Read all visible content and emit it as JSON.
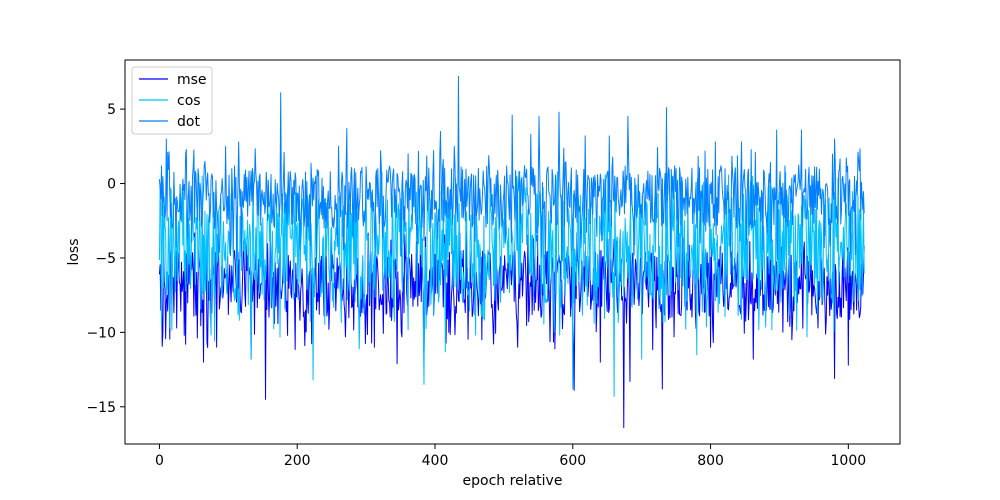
{
  "chart_data": {
    "type": "line",
    "title": "",
    "xlabel": "epoch relative",
    "ylabel": "loss",
    "xlim": [
      -50,
      1075
    ],
    "ylim": [
      -17.5,
      8.3
    ],
    "xticks": [
      0,
      200,
      400,
      600,
      800,
      1000
    ],
    "yticks": [
      5,
      0,
      -5,
      -10,
      -15
    ],
    "ytick_labels": [
      "5",
      "0",
      "−5",
      "−10",
      "−15"
    ],
    "grid": false,
    "legend": "top-left",
    "n_points": 1024,
    "series": [
      {
        "name": "mse",
        "color": "#0000ff",
        "typical_range": [
          -9,
          -4.5
        ],
        "spikes": [
          [
            0,
            -6.1
          ],
          [
            5,
            -10.0
          ],
          [
            38,
            -10.8
          ],
          [
            64,
            -12.0
          ],
          [
            133,
            -11.8
          ],
          [
            154,
            -14.5
          ],
          [
            186,
            -10.2
          ],
          [
            270,
            -10.3
          ],
          [
            312,
            -11.0
          ],
          [
            345,
            -12.1
          ],
          [
            384,
            -11.6
          ],
          [
            420,
            -10.0
          ],
          [
            468,
            -10.5
          ],
          [
            520,
            -11.0
          ],
          [
            574,
            -11.1
          ],
          [
            602,
            -13.9
          ],
          [
            640,
            -12.0
          ],
          [
            674,
            -16.4
          ],
          [
            683,
            -13.3
          ],
          [
            730,
            -13.8
          ],
          [
            800,
            -11.0
          ],
          [
            862,
            -11.8
          ],
          [
            918,
            -10.5
          ],
          [
            980,
            -13.1
          ],
          [
            1000,
            -12.2
          ],
          [
            1022,
            -6.1
          ]
        ]
      },
      {
        "name": "cos",
        "color": "#00bfff",
        "typical_range": [
          -8,
          -0.5
        ],
        "spikes": [
          [
            3,
            -9.5
          ],
          [
            80,
            -10.6
          ],
          [
            133,
            -11.8
          ],
          [
            175,
            -10.3
          ],
          [
            223,
            -13.2
          ],
          [
            290,
            -11.1
          ],
          [
            384,
            -13.5
          ],
          [
            415,
            -11.3
          ],
          [
            600,
            -13.8
          ],
          [
            660,
            -14.3
          ],
          [
            700,
            -11.8
          ],
          [
            780,
            -11.5
          ],
          [
            940,
            -10.3
          ]
        ]
      },
      {
        "name": "dot",
        "color": "#0080ff",
        "typical_range": [
          -3,
          1.2
        ],
        "spikes": [
          [
            10,
            3.0
          ],
          [
            38,
            2.0
          ],
          [
            96,
            2.5
          ],
          [
            115,
            2.8
          ],
          [
            176,
            6.1
          ],
          [
            260,
            2.5
          ],
          [
            272,
            3.7
          ],
          [
            321,
            2.2
          ],
          [
            361,
            2.0
          ],
          [
            408,
            3.5
          ],
          [
            434,
            7.2
          ],
          [
            512,
            4.6
          ],
          [
            539,
            3.3
          ],
          [
            551,
            4.5
          ],
          [
            580,
            4.8
          ],
          [
            618,
            3.2
          ],
          [
            653,
            3.2
          ],
          [
            680,
            4.5
          ],
          [
            736,
            5.1
          ],
          [
            807,
            2.8
          ],
          [
            845,
            2.8
          ],
          [
            896,
            3.6
          ],
          [
            932,
            3.6
          ],
          [
            980,
            3.0
          ]
        ]
      }
    ]
  }
}
